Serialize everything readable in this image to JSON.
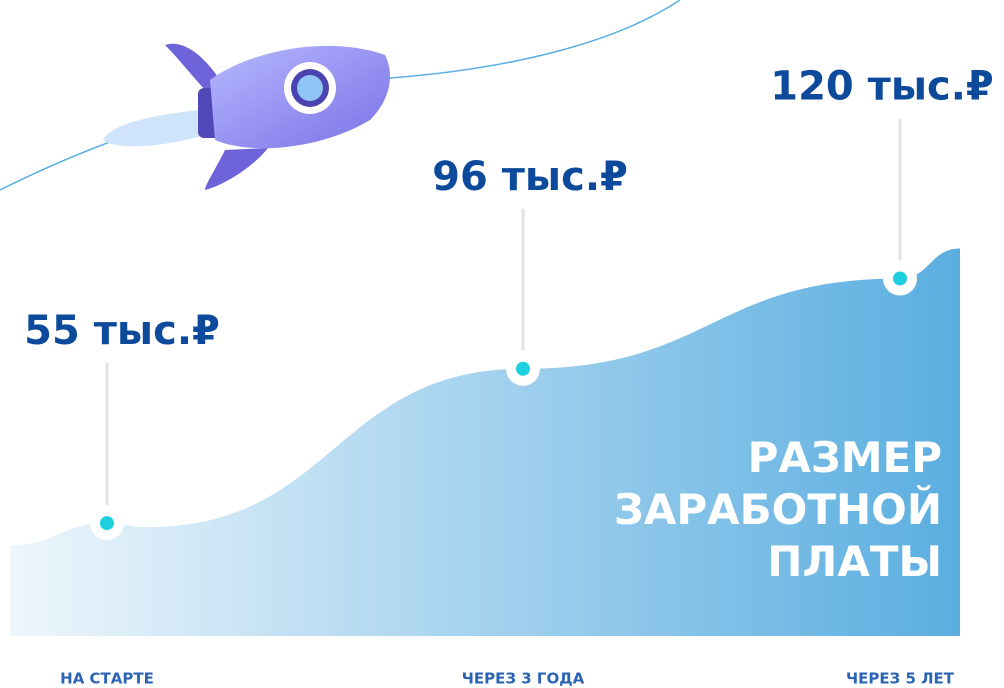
{
  "chart_data": {
    "type": "area",
    "title": "РАЗМЕР ЗАРАБОТНОЙ ПЛАТЫ",
    "categories": [
      "НА СТАРТЕ",
      "ЧЕРЕЗ 3 ГОДА",
      "ЧЕРЕЗ 5 ЛЕТ"
    ],
    "values": [
      55,
      96,
      120
    ],
    "value_labels": [
      "55 тыс.₽",
      "96 тыс.₽",
      "120 тыс.₽"
    ],
    "ylim": [
      25,
      194
    ],
    "color": "#5aaee0"
  }
}
